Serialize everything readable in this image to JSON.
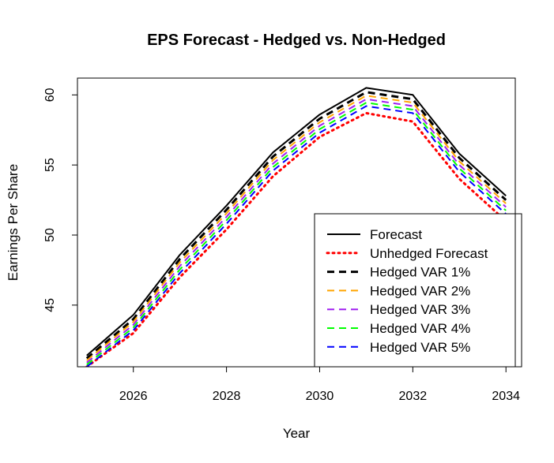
{
  "chart_data": {
    "type": "line",
    "title": "EPS Forecast - Hedged vs. Non-Hedged",
    "xlabel": "Year",
    "ylabel": "Earnings Per Share",
    "xlim": [
      2024.8,
      2034.2
    ],
    "ylim": [
      40.6,
      61.2
    ],
    "x_ticks": [
      2026,
      2028,
      2030,
      2032,
      2034
    ],
    "y_ticks": [
      45,
      50,
      55,
      60
    ],
    "grid": false,
    "legend_position": "bottom-right",
    "x": [
      2025,
      2026,
      2027,
      2028,
      2029,
      2030,
      2031,
      2032,
      2033,
      2034
    ],
    "series": [
      {
        "name": "Forecast",
        "color": "#000000",
        "style": "solid",
        "width": 2,
        "values": [
          41.4,
          44.3,
          48.6,
          52.1,
          55.9,
          58.6,
          60.5,
          60.0,
          55.8,
          52.8
        ]
      },
      {
        "name": "Unhedged Forecast",
        "color": "#ff0000",
        "style": "dotted",
        "width": 3,
        "values": [
          40.6,
          43.0,
          47.0,
          50.4,
          54.2,
          57.0,
          58.7,
          58.1,
          54.0,
          51.0
        ]
      },
      {
        "name": "Hedged VAR 1%",
        "color": "#000000",
        "style": "dashed",
        "width": 3,
        "values": [
          41.2,
          44.0,
          48.3,
          51.8,
          55.6,
          58.3,
          60.2,
          59.7,
          55.5,
          52.5
        ]
      },
      {
        "name": "Hedged VAR 2%",
        "color": "#ffa500",
        "style": "dashed",
        "width": 2,
        "values": [
          41.05,
          43.8,
          48.05,
          51.55,
          55.35,
          58.05,
          59.95,
          59.45,
          55.25,
          52.25
        ]
      },
      {
        "name": "Hedged VAR 3%",
        "color": "#a020f0",
        "style": "dashed",
        "width": 2,
        "values": [
          40.9,
          43.6,
          47.8,
          51.3,
          55.1,
          57.8,
          59.7,
          59.2,
          55.0,
          52.0
        ]
      },
      {
        "name": "Hedged VAR 4%",
        "color": "#00ff00",
        "style": "dashed",
        "width": 2,
        "values": [
          40.75,
          43.4,
          47.55,
          51.05,
          54.85,
          57.55,
          59.45,
          58.95,
          54.75,
          51.75
        ]
      },
      {
        "name": "Hedged VAR 5%",
        "color": "#0000ff",
        "style": "dashed",
        "width": 2,
        "values": [
          40.6,
          43.2,
          47.3,
          50.8,
          54.6,
          57.3,
          59.2,
          58.7,
          54.5,
          51.5
        ]
      }
    ]
  }
}
